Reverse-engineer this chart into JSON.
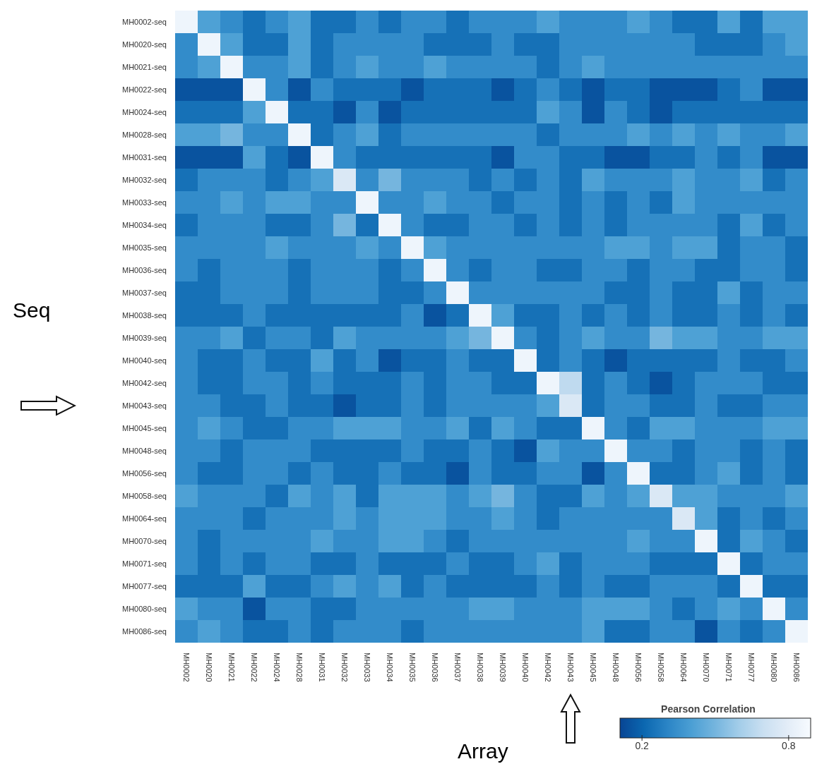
{
  "chart_data": {
    "type": "heatmap",
    "xlabel": "Array",
    "ylabel": "Seq",
    "clabel": "Pearson Correlation",
    "categories": [
      "MH0002",
      "MH0020",
      "MH0021",
      "MH0022",
      "MH0024",
      "MH0028",
      "MH0031",
      "MH0032",
      "MH0033",
      "MH0034",
      "MH0035",
      "MH0036",
      "MH0037",
      "MH0038",
      "MH0039",
      "MH0040",
      "MH0042",
      "MH0043",
      "MH0045",
      "MH0048",
      "MH0056",
      "MH0058",
      "MH0064",
      "MH0070",
      "MH0071",
      "MH0077",
      "MH0080",
      "MH0086"
    ],
    "y_categories": [
      "MH0002-seq",
      "MH0020-seq",
      "MH0021-seq",
      "MH0022-seq",
      "MH0024-seq",
      "MH0028-seq",
      "MH0031-seq",
      "MH0032-seq",
      "MH0033-seq",
      "MH0034-seq",
      "MH0035-seq",
      "MH0036-seq",
      "MH0037-seq",
      "MH0038-seq",
      "MH0039-seq",
      "MH0040-seq",
      "MH0042-seq",
      "MH0043-seq",
      "MH0045-seq",
      "MH0048-seq",
      "MH0056-seq",
      "MH0058-seq",
      "MH0064-seq",
      "MH0070-seq",
      "MH0071-seq",
      "MH0077-seq",
      "MH0080-seq",
      "MH0086-seq"
    ],
    "clim": [
      0.11,
      0.89
    ],
    "cticks": [
      0.2,
      0.8
    ],
    "cells": [
      [
        0.85,
        0.41,
        0.33,
        0.24,
        0.33,
        0.41,
        0.24,
        0.24,
        0.33,
        0.24,
        0.33,
        0.33,
        0.24,
        0.33,
        0.33,
        0.33,
        0.41,
        0.33,
        0.33,
        0.33,
        0.41,
        0.33,
        0.24,
        0.24,
        0.41,
        0.24,
        0.41,
        0.41
      ],
      [
        0.33,
        0.85,
        0.41,
        0.24,
        0.24,
        0.41,
        0.24,
        0.33,
        0.33,
        0.33,
        0.33,
        0.24,
        0.24,
        0.24,
        0.33,
        0.24,
        0.24,
        0.33,
        0.33,
        0.33,
        0.33,
        0.33,
        0.33,
        0.24,
        0.24,
        0.24,
        0.33,
        0.41
      ],
      [
        0.33,
        0.41,
        0.85,
        0.33,
        0.33,
        0.41,
        0.24,
        0.33,
        0.41,
        0.33,
        0.33,
        0.41,
        0.33,
        0.33,
        0.33,
        0.33,
        0.24,
        0.33,
        0.41,
        0.33,
        0.33,
        0.33,
        0.33,
        0.33,
        0.33,
        0.33,
        0.33,
        0.33
      ],
      [
        0.15,
        0.15,
        0.15,
        0.85,
        0.33,
        0.15,
        0.33,
        0.24,
        0.24,
        0.24,
        0.15,
        0.24,
        0.24,
        0.24,
        0.15,
        0.24,
        0.33,
        0.24,
        0.15,
        0.24,
        0.24,
        0.15,
        0.15,
        0.15,
        0.24,
        0.33,
        0.15,
        0.15
      ],
      [
        0.24,
        0.24,
        0.24,
        0.41,
        0.85,
        0.24,
        0.24,
        0.15,
        0.33,
        0.15,
        0.24,
        0.24,
        0.24,
        0.24,
        0.24,
        0.24,
        0.41,
        0.33,
        0.15,
        0.33,
        0.24,
        0.15,
        0.24,
        0.24,
        0.24,
        0.24,
        0.24,
        0.24
      ],
      [
        0.41,
        0.41,
        0.5,
        0.33,
        0.33,
        0.85,
        0.24,
        0.33,
        0.41,
        0.24,
        0.33,
        0.33,
        0.33,
        0.33,
        0.33,
        0.33,
        0.24,
        0.33,
        0.33,
        0.33,
        0.41,
        0.33,
        0.41,
        0.33,
        0.41,
        0.33,
        0.33,
        0.41
      ],
      [
        0.15,
        0.15,
        0.15,
        0.41,
        0.24,
        0.15,
        0.85,
        0.33,
        0.24,
        0.24,
        0.24,
        0.24,
        0.24,
        0.24,
        0.15,
        0.33,
        0.33,
        0.24,
        0.24,
        0.15,
        0.15,
        0.24,
        0.24,
        0.33,
        0.24,
        0.33,
        0.15,
        0.15
      ],
      [
        0.24,
        0.33,
        0.33,
        0.33,
        0.24,
        0.33,
        0.41,
        0.76,
        0.33,
        0.5,
        0.33,
        0.33,
        0.33,
        0.24,
        0.33,
        0.24,
        0.33,
        0.24,
        0.41,
        0.33,
        0.33,
        0.33,
        0.41,
        0.33,
        0.33,
        0.41,
        0.24,
        0.33
      ],
      [
        0.33,
        0.33,
        0.41,
        0.33,
        0.41,
        0.41,
        0.33,
        0.33,
        0.85,
        0.33,
        0.33,
        0.41,
        0.33,
        0.33,
        0.24,
        0.33,
        0.33,
        0.24,
        0.33,
        0.24,
        0.33,
        0.24,
        0.41,
        0.33,
        0.33,
        0.33,
        0.33,
        0.33
      ],
      [
        0.24,
        0.33,
        0.33,
        0.33,
        0.24,
        0.24,
        0.33,
        0.5,
        0.24,
        0.85,
        0.33,
        0.24,
        0.24,
        0.33,
        0.33,
        0.24,
        0.33,
        0.24,
        0.33,
        0.24,
        0.33,
        0.33,
        0.33,
        0.33,
        0.24,
        0.41,
        0.24,
        0.33
      ],
      [
        0.33,
        0.33,
        0.33,
        0.33,
        0.41,
        0.33,
        0.33,
        0.33,
        0.41,
        0.33,
        0.85,
        0.41,
        0.33,
        0.33,
        0.33,
        0.33,
        0.33,
        0.33,
        0.33,
        0.41,
        0.41,
        0.33,
        0.41,
        0.41,
        0.24,
        0.33,
        0.33,
        0.24
      ],
      [
        0.33,
        0.24,
        0.33,
        0.33,
        0.33,
        0.24,
        0.33,
        0.33,
        0.33,
        0.24,
        0.33,
        0.85,
        0.33,
        0.24,
        0.33,
        0.33,
        0.24,
        0.24,
        0.33,
        0.33,
        0.24,
        0.33,
        0.33,
        0.24,
        0.24,
        0.33,
        0.33,
        0.24
      ],
      [
        0.24,
        0.24,
        0.33,
        0.33,
        0.33,
        0.24,
        0.33,
        0.33,
        0.33,
        0.24,
        0.24,
        0.33,
        0.85,
        0.33,
        0.33,
        0.33,
        0.33,
        0.33,
        0.33,
        0.24,
        0.24,
        0.33,
        0.24,
        0.24,
        0.41,
        0.24,
        0.33,
        0.33
      ],
      [
        0.24,
        0.24,
        0.24,
        0.33,
        0.24,
        0.24,
        0.24,
        0.24,
        0.24,
        0.24,
        0.33,
        0.15,
        0.24,
        0.85,
        0.41,
        0.24,
        0.24,
        0.33,
        0.24,
        0.33,
        0.24,
        0.33,
        0.24,
        0.24,
        0.33,
        0.24,
        0.33,
        0.24
      ],
      [
        0.33,
        0.33,
        0.41,
        0.24,
        0.33,
        0.33,
        0.24,
        0.41,
        0.33,
        0.33,
        0.33,
        0.33,
        0.41,
        0.5,
        0.85,
        0.33,
        0.24,
        0.33,
        0.41,
        0.33,
        0.33,
        0.5,
        0.41,
        0.41,
        0.33,
        0.33,
        0.41,
        0.41
      ],
      [
        0.33,
        0.24,
        0.24,
        0.33,
        0.24,
        0.24,
        0.41,
        0.24,
        0.33,
        0.15,
        0.24,
        0.24,
        0.33,
        0.24,
        0.24,
        0.85,
        0.24,
        0.33,
        0.24,
        0.15,
        0.24,
        0.24,
        0.24,
        0.24,
        0.33,
        0.24,
        0.24,
        0.33
      ],
      [
        0.33,
        0.24,
        0.24,
        0.33,
        0.33,
        0.24,
        0.33,
        0.24,
        0.24,
        0.24,
        0.33,
        0.24,
        0.33,
        0.33,
        0.24,
        0.24,
        0.85,
        0.67,
        0.24,
        0.33,
        0.24,
        0.15,
        0.24,
        0.33,
        0.33,
        0.33,
        0.24,
        0.24
      ],
      [
        0.33,
        0.33,
        0.24,
        0.24,
        0.33,
        0.24,
        0.24,
        0.15,
        0.24,
        0.24,
        0.33,
        0.24,
        0.33,
        0.33,
        0.33,
        0.33,
        0.41,
        0.76,
        0.24,
        0.33,
        0.33,
        0.24,
        0.24,
        0.33,
        0.24,
        0.24,
        0.33,
        0.33
      ],
      [
        0.33,
        0.41,
        0.33,
        0.24,
        0.24,
        0.33,
        0.33,
        0.41,
        0.41,
        0.41,
        0.33,
        0.33,
        0.41,
        0.24,
        0.41,
        0.33,
        0.24,
        0.24,
        0.85,
        0.33,
        0.24,
        0.41,
        0.41,
        0.33,
        0.33,
        0.33,
        0.41,
        0.41
      ],
      [
        0.33,
        0.33,
        0.24,
        0.33,
        0.33,
        0.33,
        0.24,
        0.24,
        0.24,
        0.24,
        0.33,
        0.24,
        0.24,
        0.33,
        0.24,
        0.15,
        0.41,
        0.33,
        0.33,
        0.85,
        0.33,
        0.33,
        0.24,
        0.33,
        0.33,
        0.24,
        0.33,
        0.24
      ],
      [
        0.33,
        0.24,
        0.24,
        0.33,
        0.33,
        0.24,
        0.33,
        0.24,
        0.24,
        0.33,
        0.24,
        0.24,
        0.15,
        0.33,
        0.24,
        0.24,
        0.33,
        0.33,
        0.15,
        0.33,
        0.85,
        0.24,
        0.24,
        0.33,
        0.41,
        0.24,
        0.33,
        0.24
      ],
      [
        0.41,
        0.33,
        0.33,
        0.33,
        0.24,
        0.41,
        0.33,
        0.41,
        0.24,
        0.41,
        0.41,
        0.41,
        0.33,
        0.41,
        0.5,
        0.33,
        0.24,
        0.24,
        0.41,
        0.33,
        0.41,
        0.76,
        0.41,
        0.41,
        0.33,
        0.33,
        0.33,
        0.41
      ],
      [
        0.33,
        0.33,
        0.33,
        0.24,
        0.33,
        0.33,
        0.33,
        0.41,
        0.33,
        0.41,
        0.41,
        0.41,
        0.33,
        0.33,
        0.41,
        0.33,
        0.24,
        0.33,
        0.33,
        0.33,
        0.33,
        0.33,
        0.76,
        0.41,
        0.24,
        0.33,
        0.24,
        0.33
      ],
      [
        0.33,
        0.24,
        0.33,
        0.33,
        0.33,
        0.33,
        0.41,
        0.33,
        0.33,
        0.41,
        0.41,
        0.33,
        0.24,
        0.33,
        0.33,
        0.33,
        0.33,
        0.33,
        0.33,
        0.33,
        0.41,
        0.33,
        0.33,
        0.85,
        0.24,
        0.41,
        0.33,
        0.24
      ],
      [
        0.33,
        0.24,
        0.33,
        0.24,
        0.33,
        0.33,
        0.24,
        0.24,
        0.33,
        0.24,
        0.24,
        0.24,
        0.33,
        0.24,
        0.24,
        0.33,
        0.41,
        0.24,
        0.33,
        0.33,
        0.33,
        0.24,
        0.24,
        0.24,
        0.85,
        0.24,
        0.33,
        0.33
      ],
      [
        0.24,
        0.24,
        0.24,
        0.41,
        0.24,
        0.24,
        0.33,
        0.41,
        0.33,
        0.41,
        0.24,
        0.33,
        0.24,
        0.24,
        0.24,
        0.24,
        0.33,
        0.24,
        0.33,
        0.24,
        0.24,
        0.33,
        0.33,
        0.33,
        0.24,
        0.85,
        0.24,
        0.24
      ],
      [
        0.41,
        0.33,
        0.33,
        0.15,
        0.33,
        0.33,
        0.24,
        0.24,
        0.33,
        0.33,
        0.33,
        0.33,
        0.33,
        0.41,
        0.41,
        0.33,
        0.33,
        0.33,
        0.41,
        0.41,
        0.41,
        0.33,
        0.24,
        0.33,
        0.41,
        0.33,
        0.85,
        0.33
      ],
      [
        0.33,
        0.41,
        0.33,
        0.24,
        0.24,
        0.33,
        0.24,
        0.33,
        0.33,
        0.33,
        0.24,
        0.33,
        0.33,
        0.33,
        0.33,
        0.33,
        0.33,
        0.33,
        0.41,
        0.24,
        0.24,
        0.33,
        0.33,
        0.15,
        0.33,
        0.24,
        0.33,
        0.85
      ]
    ]
  }
}
